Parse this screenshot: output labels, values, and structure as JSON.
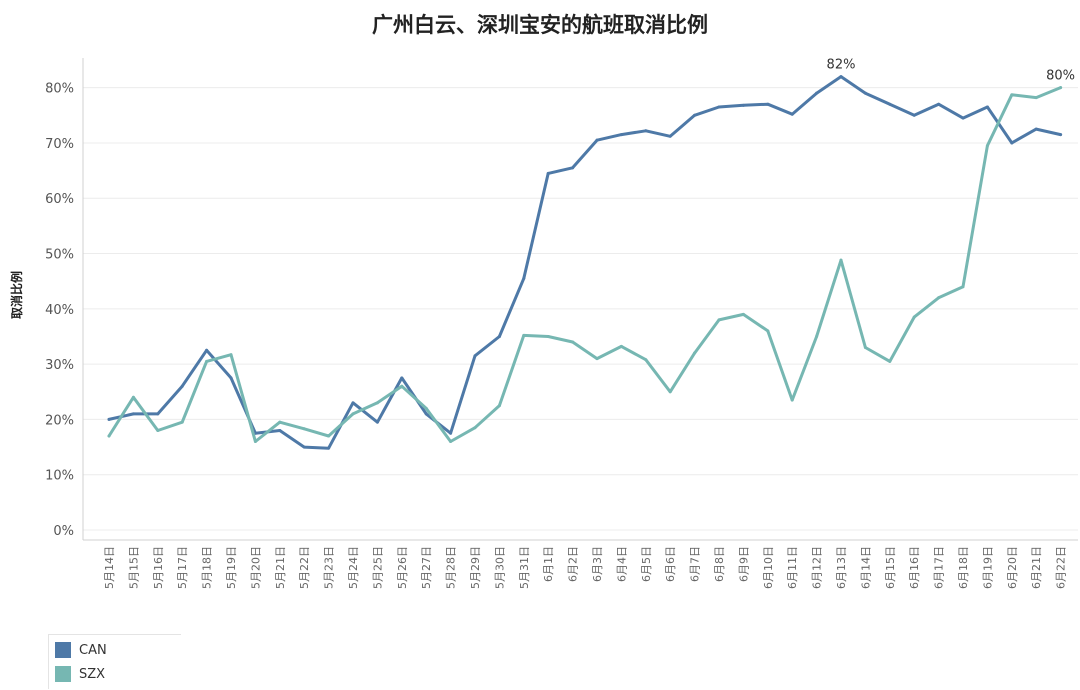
{
  "chart_data": {
    "type": "line",
    "title": "广州白云、深圳宝安的航班取消比例",
    "xlabel": "",
    "ylabel": "取消比例",
    "ylim": [
      0,
      85
    ],
    "yticks": [
      "0%",
      "10%",
      "20%",
      "30%",
      "40%",
      "50%",
      "60%",
      "70%",
      "80%"
    ],
    "categories": [
      "5月14日",
      "5月15日",
      "5月16日",
      "5月17日",
      "5月18日",
      "5月19日",
      "5月20日",
      "5月21日",
      "5月22日",
      "5月23日",
      "5月24日",
      "5月25日",
      "5月26日",
      "5月27日",
      "5月28日",
      "5月29日",
      "5月30日",
      "5月31日",
      "6月1日",
      "6月2日",
      "6月3日",
      "6月4日",
      "6月5日",
      "6月6日",
      "6月7日",
      "6月8日",
      "6月9日",
      "6月10日",
      "6月11日",
      "6月12日",
      "6月13日",
      "6月14日",
      "6月15日",
      "6月16日",
      "6月17日",
      "6月18日",
      "6月19日",
      "6月20日",
      "6月21日",
      "6月22日"
    ],
    "series": [
      {
        "name": "CAN",
        "color": "#4e79a7",
        "values": [
          20,
          21,
          21,
          26,
          32.5,
          27.5,
          17.5,
          18,
          15,
          14.8,
          23,
          19.5,
          27.5,
          21,
          17.5,
          31.5,
          35,
          45.5,
          64.5,
          65.5,
          70.5,
          71.5,
          72.2,
          71.2,
          75,
          76.5,
          76.8,
          77,
          75.2,
          79,
          82,
          79,
          77,
          75,
          77,
          74.5,
          76.5,
          70,
          72.5,
          71.5
        ]
      },
      {
        "name": "SZX",
        "color": "#76b7b2",
        "values": [
          17,
          24,
          18,
          19.5,
          30.5,
          31.7,
          16,
          19.5,
          18.3,
          17,
          21,
          23,
          26,
          22,
          16,
          18.5,
          22.5,
          35.2,
          35,
          34,
          31,
          33.2,
          30.8,
          25,
          32,
          38,
          39,
          36,
          23.5,
          35,
          48.8,
          33,
          30.5,
          38.5,
          42,
          44,
          69.5,
          78.7,
          78.2,
          80
        ]
      }
    ],
    "annotations": [
      {
        "series": "CAN",
        "category": "6月13日",
        "text": "82%"
      },
      {
        "series": "SZX",
        "category": "6月22日",
        "text": "80%"
      }
    ],
    "grid": true,
    "legend": {
      "position": "bottom-left"
    }
  }
}
